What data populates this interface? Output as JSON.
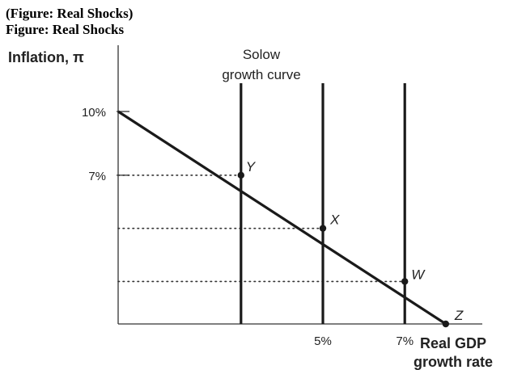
{
  "header": {
    "line1": "(Figure: Real Shocks)",
    "line2": "Figure: Real Shocks"
  },
  "chart_data": {
    "type": "line",
    "title": "",
    "ylabel": "Inflation, π",
    "xlabel_line1": "Real GDP",
    "xlabel_line2": "growth rate",
    "curve_label_line1": "Solow",
    "curve_label_line2": "growth curve",
    "x_tick_labels": [
      {
        "x": 5,
        "label": "5%"
      },
      {
        "x": 7,
        "label": "7%"
      }
    ],
    "y_tick_labels": [
      {
        "y": 10,
        "label": "10%"
      },
      {
        "y": 7,
        "label": "7%"
      }
    ],
    "xlim": [
      0,
      8.3
    ],
    "ylim": [
      0,
      10
    ],
    "solow_curves_x": [
      3,
      5,
      7
    ],
    "ad_line": [
      [
        0,
        10
      ],
      [
        8,
        0
      ]
    ],
    "points": [
      {
        "name": "Y",
        "x": 3,
        "y": 7
      },
      {
        "name": "X",
        "x": 5,
        "y": 4.5
      },
      {
        "name": "W",
        "x": 7,
        "y": 2
      },
      {
        "name": "Z",
        "x": 8,
        "y": 0
      }
    ],
    "grid": false
  }
}
